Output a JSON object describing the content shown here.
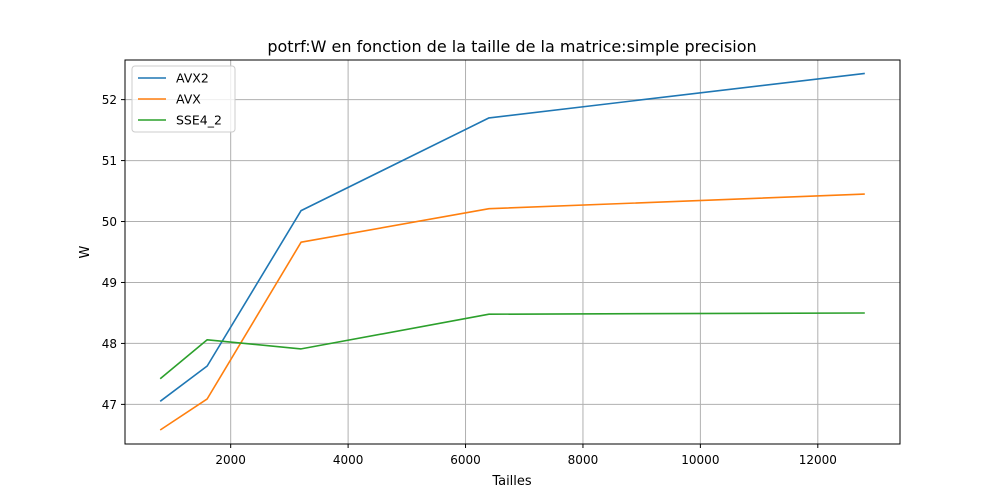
{
  "chart_data": {
    "type": "line",
    "title": "potrf:W en fonction de la taille de la matrice:simple precision",
    "xlabel": "Tailles",
    "ylabel": "W",
    "xlim": [
      200,
      13400
    ],
    "ylim": [
      46.35,
      52.65
    ],
    "xticks": [
      2000,
      4000,
      6000,
      8000,
      10000,
      12000
    ],
    "yticks": [
      47,
      48,
      49,
      50,
      51,
      52
    ],
    "grid": true,
    "legend_position": "top-left",
    "x": [
      800,
      1600,
      3200,
      6400,
      12800
    ],
    "series": [
      {
        "name": "AVX2",
        "color": "#1f77b4",
        "values": [
          47.05,
          47.63,
          50.18,
          51.7,
          52.43
        ]
      },
      {
        "name": "AVX",
        "color": "#ff7f0e",
        "values": [
          46.58,
          47.09,
          49.66,
          50.21,
          50.45
        ]
      },
      {
        "name": "SSE4_2",
        "color": "#2ca02c",
        "values": [
          47.42,
          48.06,
          47.91,
          48.48,
          48.5
        ]
      }
    ]
  }
}
